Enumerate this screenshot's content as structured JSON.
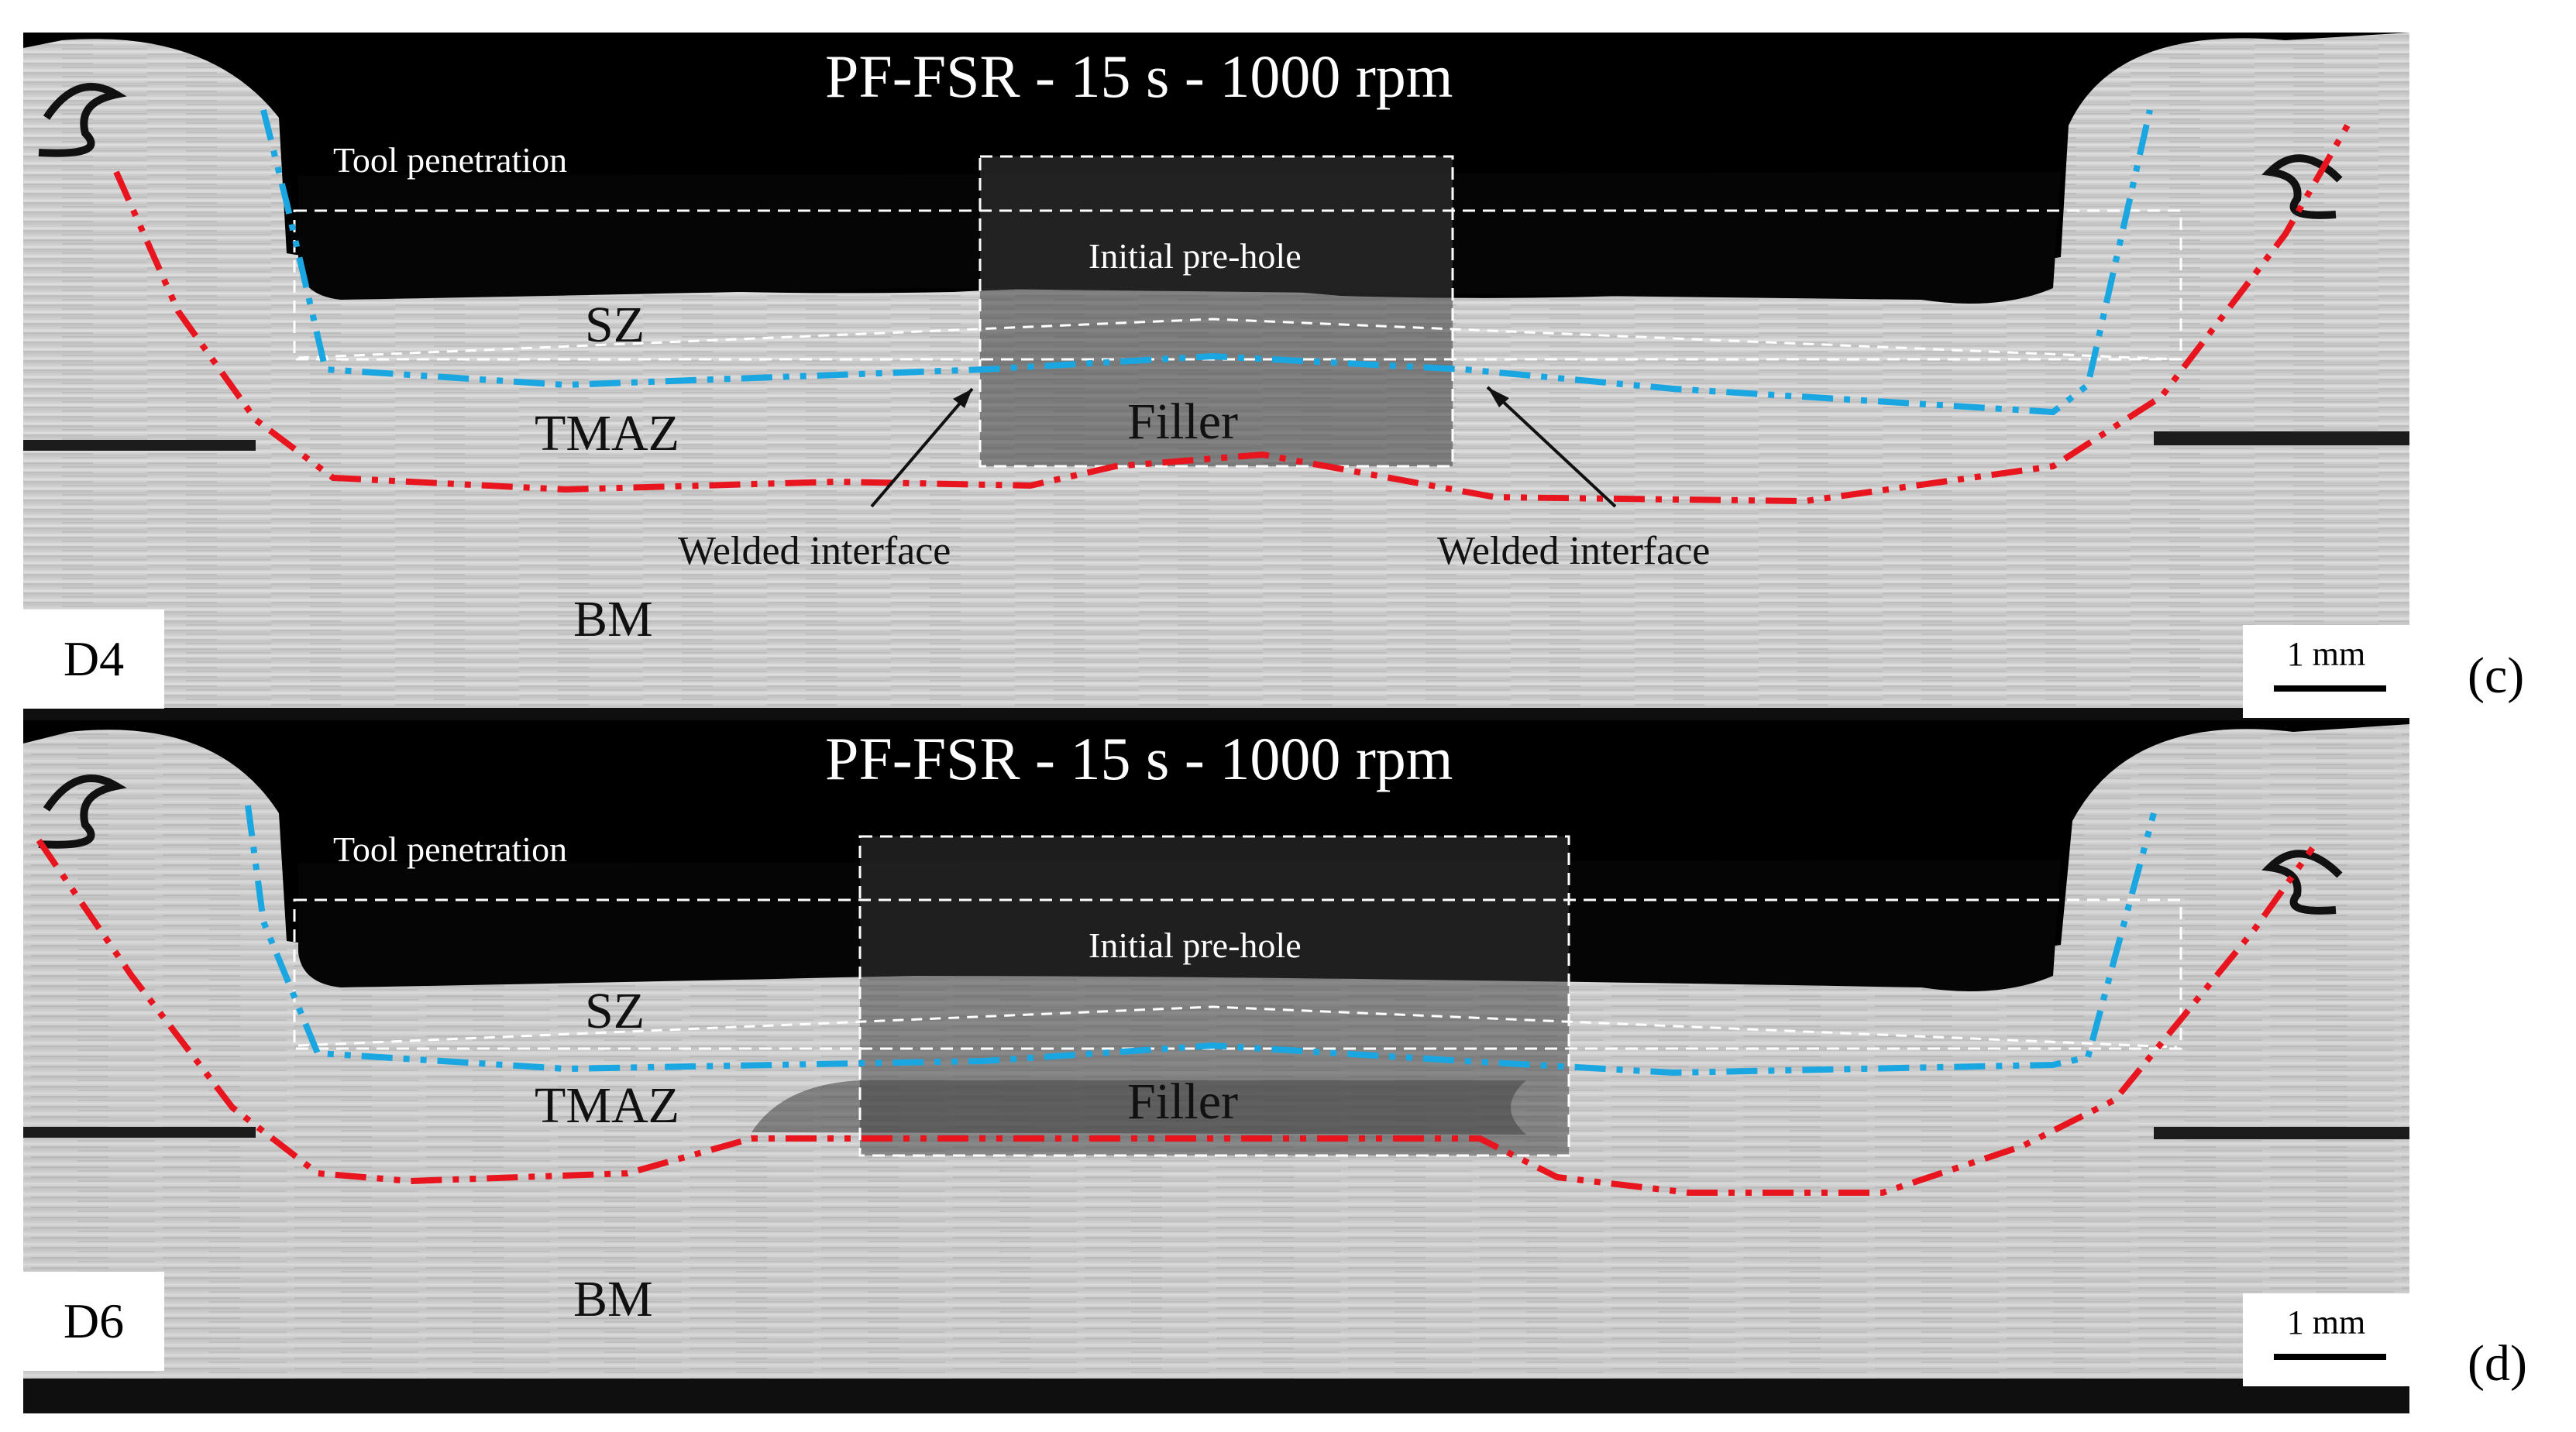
{
  "panels": [
    {
      "id": "D4",
      "title": "PF-FSR - 15 s - 1000 rpm",
      "tool_penetration": "Tool penetration",
      "initial_prehole": "Initial pre-hole",
      "zones": {
        "sz": "SZ",
        "tmaz": "TMAZ",
        "filler": "Filler",
        "bm": "BM"
      },
      "interface_left": "Welded interface",
      "interface_right": "Welded interface",
      "scale": "1 mm",
      "letter": "(c)"
    },
    {
      "id": "D6",
      "title": "PF-FSR - 15 s - 1000 rpm",
      "tool_penetration": "Tool penetration",
      "initial_prehole": "Initial pre-hole",
      "zones": {
        "sz": "SZ",
        "tmaz": "TMAZ",
        "filler": "Filler",
        "bm": "BM"
      },
      "scale": "1 mm",
      "letter": "(d)"
    }
  ],
  "colors": {
    "background": "#ffffff",
    "specimen_gray": "#c9c9c9",
    "dark_void": "#0a0a0a",
    "blue_boundary": "#1aa6e0",
    "red_boundary": "#e8141e",
    "dashed_box": "#ffffff"
  }
}
